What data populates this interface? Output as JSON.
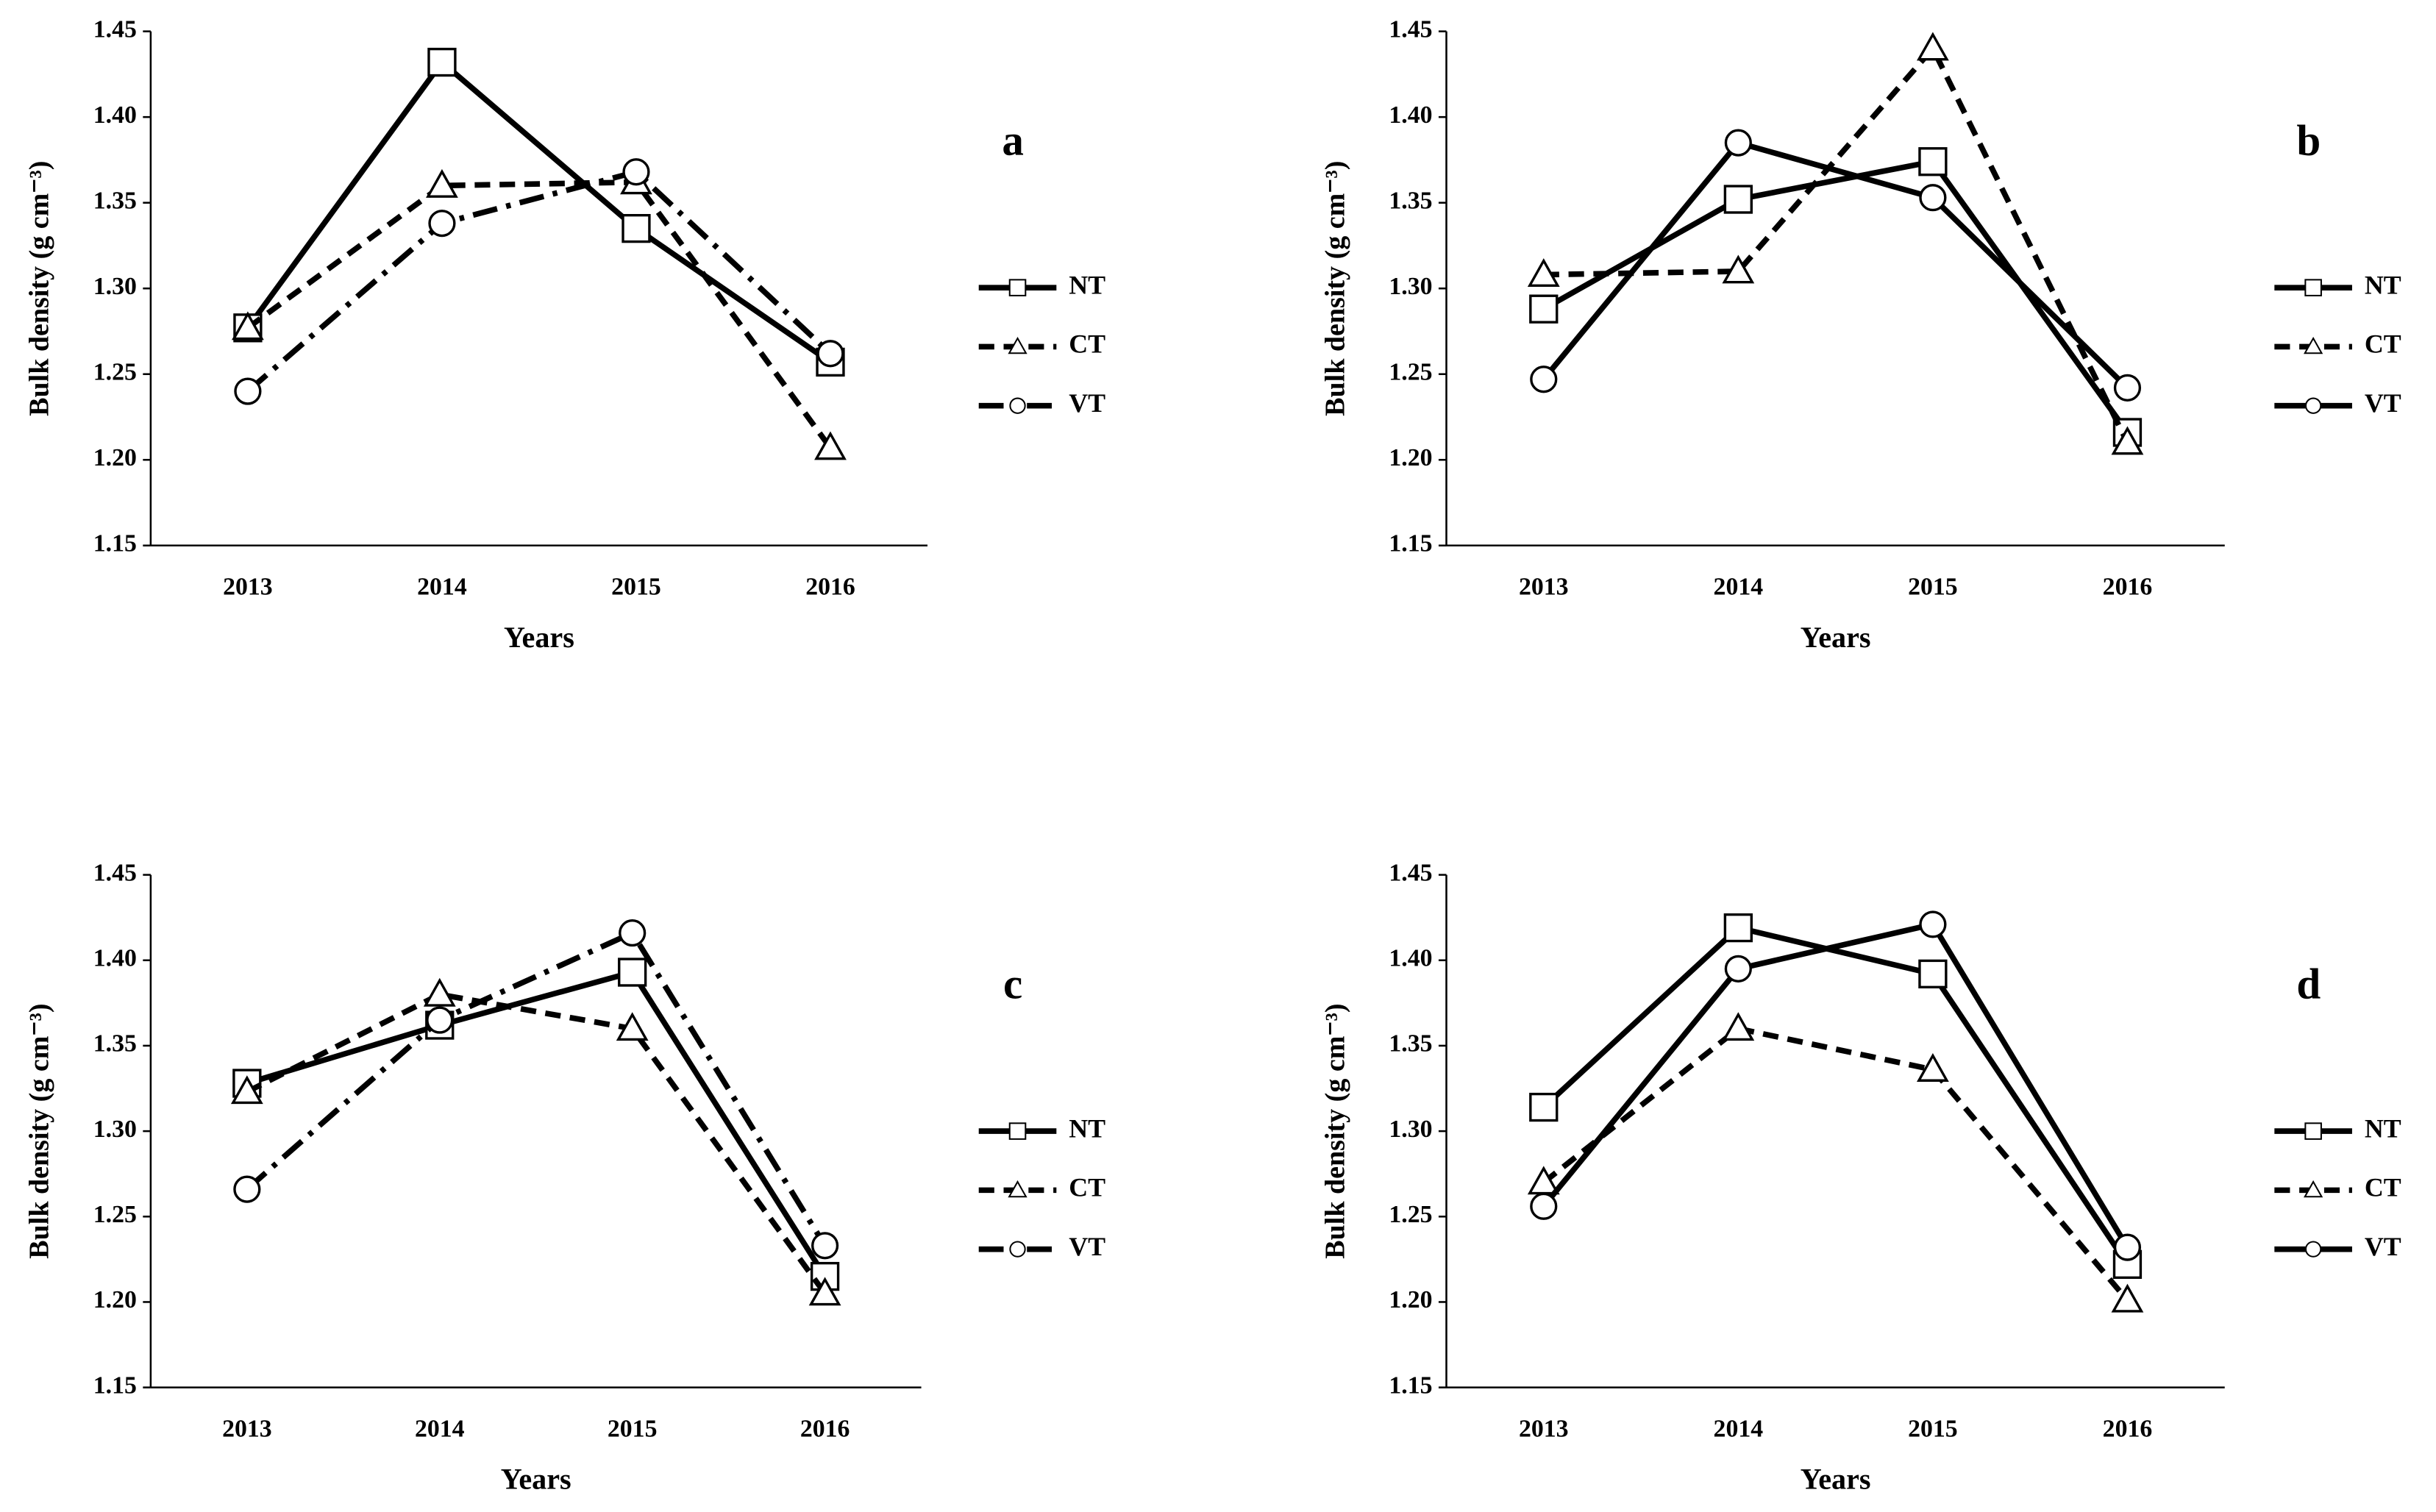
{
  "chart_data": [
    {
      "type": "line",
      "title": "a",
      "x_label": "Years",
      "y_label": "Bulk density (g cm⁻³)",
      "categories": [
        "2013",
        "2014",
        "2015",
        "2016"
      ],
      "ylim": [
        1.15,
        1.45
      ],
      "yticks": [
        {
          "value": 1.15,
          "label": "1.15"
        },
        {
          "value": 1.2,
          "label": "1.20"
        },
        {
          "value": 1.25,
          "label": "1.25"
        },
        {
          "value": 1.3,
          "label": "1.30"
        },
        {
          "value": 1.35,
          "label": "1.35"
        },
        {
          "value": 1.4,
          "label": "1.40"
        },
        {
          "value": 1.45,
          "label": "1.45"
        }
      ],
      "series": [
        {
          "name": "NT",
          "color": "#000000",
          "dash": "solid",
          "marker": "square",
          "values": [
            1.277,
            1.432,
            1.335,
            1.257
          ]
        },
        {
          "name": "CT",
          "color": "#000000",
          "dash": "dash",
          "marker": "triangle",
          "values": [
            1.277,
            1.36,
            1.362,
            1.207
          ]
        },
        {
          "name": "VT",
          "color": "#000000",
          "dash": "dashdot",
          "marker": "circle",
          "values": [
            1.24,
            1.338,
            1.368,
            1.262
          ]
        }
      ]
    },
    {
      "type": "line",
      "title": "b",
      "x_label": "Years",
      "y_label": "Bulk density (g cm⁻³)",
      "categories": [
        "2013",
        "2014",
        "2015",
        "2016"
      ],
      "ylim": [
        1.15,
        1.45
      ],
      "yticks": [
        {
          "value": 1.15,
          "label": "1.15"
        },
        {
          "value": 1.2,
          "label": "1.20"
        },
        {
          "value": 1.25,
          "label": "1.25"
        },
        {
          "value": 1.3,
          "label": "1.30"
        },
        {
          "value": 1.35,
          "label": "1.35"
        },
        {
          "value": 1.4,
          "label": "1.40"
        },
        {
          "value": 1.45,
          "label": "1.45"
        }
      ],
      "series": [
        {
          "name": "NT",
          "color": "#000000",
          "dash": "solid",
          "marker": "square",
          "values": [
            1.288,
            1.352,
            1.374,
            1.216
          ]
        },
        {
          "name": "CT",
          "color": "#000000",
          "dash": "dash",
          "marker": "triangle",
          "values": [
            1.308,
            1.31,
            1.44,
            1.21
          ]
        },
        {
          "name": "VT",
          "color": "#000000",
          "dash": "solid",
          "marker": "circle",
          "values": [
            1.247,
            1.385,
            1.353,
            1.242
          ]
        }
      ]
    },
    {
      "type": "line",
      "title": "c",
      "x_label": "Years",
      "y_label": "Bulk density (g cm⁻³)",
      "categories": [
        "2013",
        "2014",
        "2015",
        "2016"
      ],
      "ylim": [
        1.15,
        1.45
      ],
      "yticks": [
        {
          "value": 1.15,
          "label": "1.15"
        },
        {
          "value": 1.2,
          "label": "1.20"
        },
        {
          "value": 1.25,
          "label": "1.25"
        },
        {
          "value": 1.3,
          "label": "1.30"
        },
        {
          "value": 1.35,
          "label": "1.35"
        },
        {
          "value": 1.4,
          "label": "1.40"
        },
        {
          "value": 1.45,
          "label": "1.45"
        }
      ],
      "series": [
        {
          "name": "NT",
          "color": "#000000",
          "dash": "solid",
          "marker": "square",
          "values": [
            1.328,
            1.362,
            1.393,
            1.215
          ]
        },
        {
          "name": "CT",
          "color": "#000000",
          "dash": "dash",
          "marker": "triangle",
          "values": [
            1.323,
            1.38,
            1.36,
            1.205
          ]
        },
        {
          "name": "VT",
          "color": "#000000",
          "dash": "dashdot",
          "marker": "circle",
          "values": [
            1.266,
            1.365,
            1.416,
            1.233
          ]
        }
      ]
    },
    {
      "type": "line",
      "title": "d",
      "x_label": "Years",
      "y_label": "Bulk density (g cm⁻³)",
      "categories": [
        "2013",
        "2014",
        "2015",
        "2016"
      ],
      "ylim": [
        1.15,
        1.45
      ],
      "yticks": [
        {
          "value": 1.15,
          "label": "1.15"
        },
        {
          "value": 1.2,
          "label": "1.20"
        },
        {
          "value": 1.25,
          "label": "1.25"
        },
        {
          "value": 1.3,
          "label": "1.30"
        },
        {
          "value": 1.35,
          "label": "1.35"
        },
        {
          "value": 1.4,
          "label": "1.40"
        },
        {
          "value": 1.45,
          "label": "1.45"
        }
      ],
      "series": [
        {
          "name": "NT",
          "color": "#000000",
          "dash": "solid",
          "marker": "square",
          "values": [
            1.314,
            1.419,
            1.392,
            1.222
          ]
        },
        {
          "name": "CT",
          "color": "#000000",
          "dash": "dash",
          "marker": "triangle",
          "values": [
            1.27,
            1.36,
            1.336,
            1.201
          ]
        },
        {
          "name": "VT",
          "color": "#000000",
          "dash": "solid",
          "marker": "circle",
          "values": [
            1.256,
            1.395,
            1.421,
            1.232
          ]
        }
      ]
    }
  ]
}
